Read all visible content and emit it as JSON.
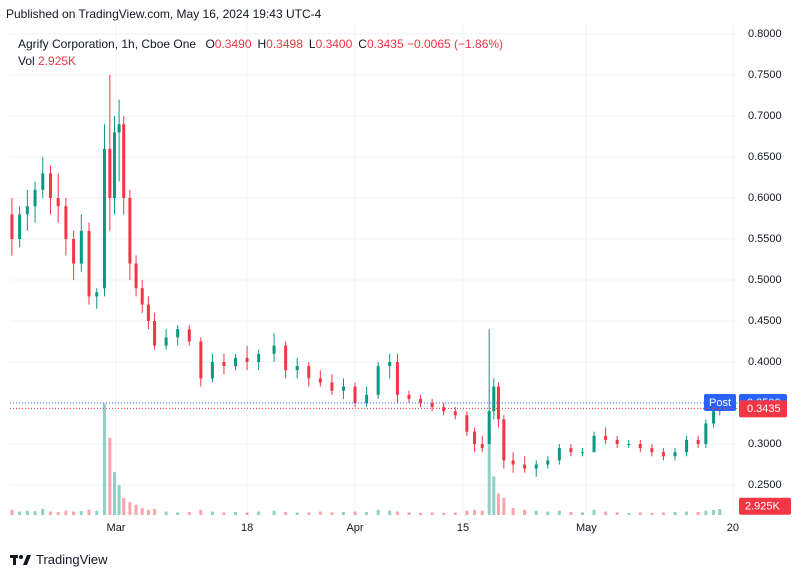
{
  "header": {
    "published": "Published on TradingView.com, May 16, 2024 19:43 UTC-4"
  },
  "footer": {
    "brand": "TradingView"
  },
  "legend": {
    "symbol": "Agrify Corporation, 1h, Cboe One",
    "fields": [
      {
        "key": "O",
        "value": "0.3490"
      },
      {
        "key": "H",
        "value": "0.3498"
      },
      {
        "key": "L",
        "value": "0.3400"
      },
      {
        "key": "C",
        "value": "0.3435"
      }
    ],
    "change": "−0.0065 (−1.86%)",
    "vol_key": "Vol",
    "vol_value": "2.925K"
  },
  "chart_data": {
    "type": "candlestick",
    "up_color": "#089981",
    "down_color": "#f23645",
    "grid": true,
    "x": [
      16.5,
      17.5,
      18.5,
      19.5,
      20.5,
      21.5,
      22.5,
      23.5,
      24.5,
      25.5,
      26.5,
      27.5,
      28.5,
      29.2,
      29.8,
      30.4,
      31,
      31.8,
      32.6,
      33.4,
      34.2,
      35,
      36.5,
      38,
      39.5,
      41,
      42.5,
      44,
      45.5,
      47,
      48.5,
      50.5,
      52,
      53.5,
      55,
      56.5,
      58,
      59.5,
      61,
      62.5,
      64,
      65.5,
      66.5,
      68,
      69.5,
      71,
      72.5,
      74,
      75.5,
      76.5,
      77.5,
      78.4,
      79,
      79.6,
      80.3,
      81.5,
      83,
      84.5,
      86,
      87.5,
      89,
      90.5,
      92,
      93.5,
      95,
      96.5,
      98,
      99.5,
      101,
      102.5,
      104,
      105.5,
      106.5,
      107.5,
      108.3,
      108.8
    ],
    "open": [
      0.58,
      0.55,
      0.58,
      0.59,
      0.61,
      0.63,
      0.6,
      0.59,
      0.55,
      0.52,
      0.56,
      0.48,
      0.49,
      0.66,
      0.6,
      0.68,
      0.69,
      0.6,
      0.52,
      0.49,
      0.47,
      0.45,
      0.42,
      0.43,
      0.44,
      0.425,
      0.38,
      0.4,
      0.395,
      0.405,
      0.4,
      0.41,
      0.42,
      0.39,
      0.395,
      0.38,
      0.375,
      0.365,
      0.37,
      0.35,
      0.36,
      0.395,
      0.4,
      0.36,
      0.355,
      0.35,
      0.345,
      0.34,
      0.335,
      0.315,
      0.3,
      0.3,
      0.34,
      0.37,
      0.33,
      0.28,
      0.275,
      0.27,
      0.275,
      0.28,
      0.295,
      0.29,
      0.29,
      0.31,
      0.305,
      0.3,
      0.3,
      0.295,
      0.29,
      0.285,
      0.29,
      0.305,
      0.3,
      0.325,
      0.34,
      0.349
    ],
    "high": [
      0.6,
      0.59,
      0.61,
      0.62,
      0.65,
      0.64,
      0.63,
      0.6,
      0.56,
      0.58,
      0.57,
      0.49,
      0.69,
      0.75,
      0.7,
      0.72,
      0.7,
      0.61,
      0.53,
      0.5,
      0.48,
      0.46,
      0.44,
      0.445,
      0.445,
      0.43,
      0.41,
      0.41,
      0.41,
      0.42,
      0.415,
      0.435,
      0.425,
      0.405,
      0.4,
      0.39,
      0.385,
      0.38,
      0.375,
      0.37,
      0.4,
      0.41,
      0.41,
      0.365,
      0.36,
      0.355,
      0.35,
      0.345,
      0.34,
      0.32,
      0.31,
      0.44,
      0.38,
      0.375,
      0.335,
      0.29,
      0.285,
      0.28,
      0.285,
      0.3,
      0.3,
      0.295,
      0.315,
      0.32,
      0.31,
      0.305,
      0.305,
      0.3,
      0.295,
      0.295,
      0.31,
      0.31,
      0.33,
      0.345,
      0.355,
      0.3498
    ],
    "low": [
      0.53,
      0.54,
      0.56,
      0.57,
      0.6,
      0.58,
      0.57,
      0.53,
      0.5,
      0.51,
      0.47,
      0.465,
      0.48,
      0.56,
      0.58,
      0.62,
      0.58,
      0.5,
      0.48,
      0.46,
      0.44,
      0.415,
      0.415,
      0.42,
      0.42,
      0.37,
      0.375,
      0.385,
      0.39,
      0.39,
      0.39,
      0.4,
      0.38,
      0.38,
      0.37,
      0.37,
      0.36,
      0.355,
      0.345,
      0.345,
      0.355,
      0.38,
      0.35,
      0.35,
      0.345,
      0.34,
      0.335,
      0.33,
      0.31,
      0.29,
      0.29,
      0.3,
      0.33,
      0.32,
      0.27,
      0.265,
      0.265,
      0.26,
      0.27,
      0.275,
      0.285,
      0.285,
      0.29,
      0.3,
      0.295,
      0.295,
      0.29,
      0.285,
      0.28,
      0.28,
      0.285,
      0.295,
      0.295,
      0.32,
      0.335,
      0.34
    ],
    "close": [
      0.55,
      0.58,
      0.59,
      0.61,
      0.63,
      0.6,
      0.59,
      0.55,
      0.52,
      0.56,
      0.48,
      0.485,
      0.66,
      0.6,
      0.68,
      0.69,
      0.6,
      0.52,
      0.49,
      0.47,
      0.45,
      0.42,
      0.43,
      0.44,
      0.425,
      0.38,
      0.4,
      0.395,
      0.405,
      0.4,
      0.41,
      0.42,
      0.39,
      0.395,
      0.38,
      0.375,
      0.365,
      0.37,
      0.35,
      0.36,
      0.395,
      0.4,
      0.36,
      0.355,
      0.35,
      0.345,
      0.34,
      0.335,
      0.315,
      0.3,
      0.295,
      0.34,
      0.37,
      0.33,
      0.28,
      0.275,
      0.27,
      0.275,
      0.28,
      0.295,
      0.29,
      0.29,
      0.31,
      0.305,
      0.3,
      0.3,
      0.295,
      0.29,
      0.285,
      0.29,
      0.305,
      0.3,
      0.325,
      0.34,
      0.349,
      0.3435
    ],
    "volume": [
      60,
      40,
      50,
      45,
      70,
      40,
      35,
      50,
      40,
      45,
      60,
      50,
      1300,
      900,
      500,
      350,
      200,
      150,
      120,
      80,
      60,
      70,
      40,
      30,
      35,
      60,
      40,
      30,
      35,
      30,
      40,
      50,
      35,
      30,
      30,
      40,
      30,
      35,
      40,
      35,
      60,
      50,
      40,
      30,
      25,
      30,
      25,
      30,
      50,
      60,
      50,
      1000,
      450,
      250,
      200,
      80,
      60,
      50,
      40,
      50,
      35,
      30,
      60,
      40,
      30,
      25,
      30,
      25,
      30,
      35,
      40,
      35,
      50,
      60,
      70,
      2.925
    ],
    "vlim": [
      0,
      1400
    ],
    "xlim": [
      16.25,
      110.67
    ],
    "xticks": [
      {
        "value": 30,
        "label": "Mar"
      },
      {
        "value": 47,
        "label": "18"
      },
      {
        "value": 61,
        "label": "Apr"
      },
      {
        "value": 75,
        "label": "15"
      },
      {
        "value": 91,
        "label": "May"
      },
      {
        "value": 110,
        "label": "20"
      }
    ],
    "ylim": [
      0.2134,
      0.811
    ],
    "yticks": [
      {
        "value": 0.25,
        "label": "0.2500"
      },
      {
        "value": 0.3,
        "label": "0.3000"
      },
      {
        "value": 0.35,
        "label": "0.3500"
      },
      {
        "value": 0.4,
        "label": "0.4000"
      },
      {
        "value": 0.45,
        "label": "0.4500"
      },
      {
        "value": 0.5,
        "label": "0.5000"
      },
      {
        "value": 0.55,
        "label": "0.5500"
      },
      {
        "value": 0.6,
        "label": "0.6000"
      },
      {
        "value": 0.65,
        "label": "0.6500"
      },
      {
        "value": 0.7,
        "label": "0.7000"
      },
      {
        "value": 0.75,
        "label": "0.7500"
      },
      {
        "value": 0.8,
        "label": "0.8000"
      }
    ],
    "post": {
      "label": "Post",
      "price": {
        "value": 0.35,
        "label": "0.3500"
      },
      "color": "#2962ff"
    },
    "last": {
      "value": 0.3435,
      "label": "0.3435",
      "color": "#f23645"
    },
    "volume_last": {
      "value": 2.925,
      "label": "2.925K",
      "color": "#f23645"
    }
  }
}
